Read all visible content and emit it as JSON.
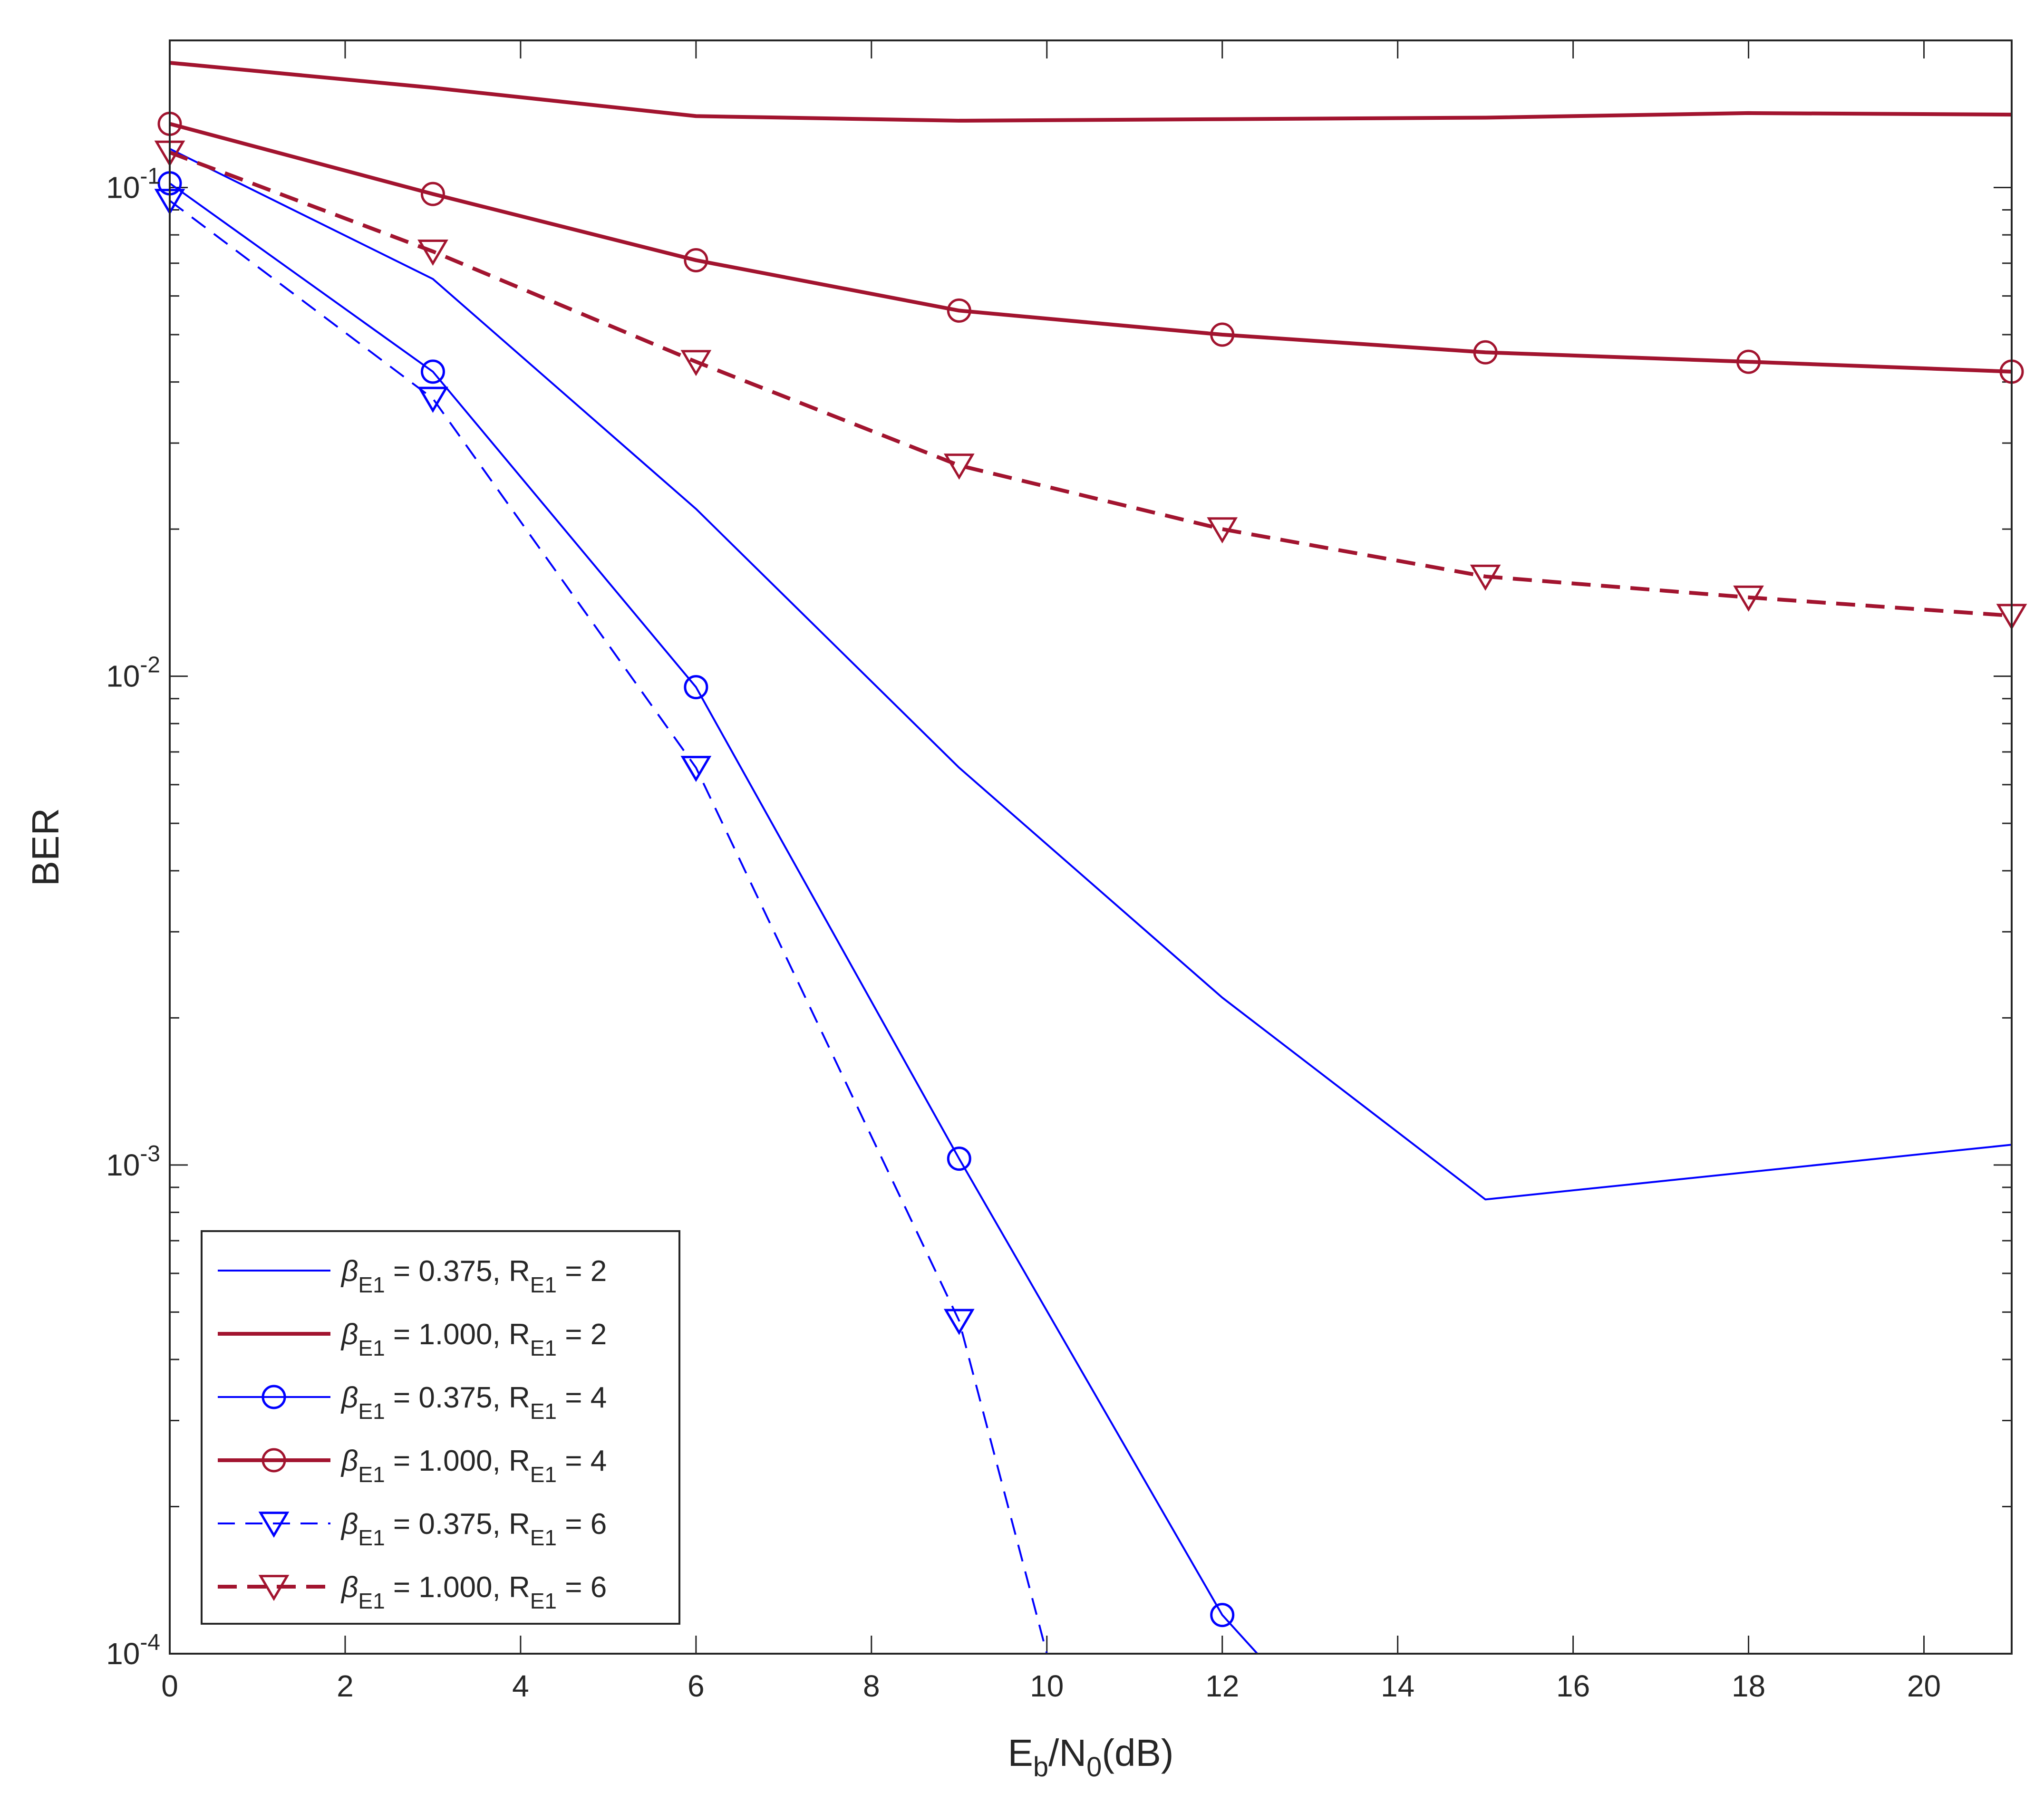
{
  "chart_data": {
    "type": "line",
    "xlabel": {
      "base": "E",
      "sub1": "b",
      "mid": "/N",
      "sub2": "0",
      "tail": "(dB)"
    },
    "ylabel": "BER",
    "yscale": "log",
    "xlim": [
      0,
      21
    ],
    "ylim": [
      0.0001,
      0.2
    ],
    "x_ticks": [
      "0",
      "2",
      "4",
      "6",
      "8",
      "10",
      "12",
      "14",
      "16",
      "18",
      "20"
    ],
    "y_ticks": [
      {
        "base": "10",
        "exp": "-4",
        "value": 0.0001
      },
      {
        "base": "10",
        "exp": "-3",
        "value": 0.001
      },
      {
        "base": "10",
        "exp": "-2",
        "value": 0.01
      },
      {
        "base": "10",
        "exp": "-1",
        "value": 0.1
      }
    ],
    "legend_position": "bottom-left",
    "colors": {
      "blue": "#0000ff",
      "red": "#a2142f",
      "axis": "#262626"
    },
    "series": [
      {
        "name": "beta_E1 = 0.375, R_E1 = 2",
        "legend": {
          "beta": "0.375",
          "r": "2"
        },
        "color": "blue",
        "dash": "solid",
        "marker": "none",
        "width": "thin",
        "x": [
          0,
          3,
          6,
          9,
          12,
          15,
          21
        ],
        "y": [
          0.12,
          0.065,
          0.022,
          0.0065,
          0.0022,
          0.00085,
          0.0011
        ]
      },
      {
        "name": "beta_E1 = 1.000, R_E1 = 2",
        "legend": {
          "beta": "1.000",
          "r": "2"
        },
        "color": "red",
        "dash": "solid",
        "marker": "none",
        "width": "thick",
        "x": [
          0,
          3,
          6,
          9,
          12,
          15,
          18,
          21
        ],
        "y": [
          0.18,
          0.16,
          0.14,
          0.137,
          0.138,
          0.139,
          0.142,
          0.141
        ]
      },
      {
        "name": "beta_E1 = 0.375, R_E1 = 4",
        "legend": {
          "beta": "0.375",
          "r": "4"
        },
        "color": "blue",
        "dash": "solid",
        "marker": "circle",
        "width": "thin",
        "x": [
          0,
          3,
          6,
          9,
          12,
          12.4
        ],
        "y": [
          0.102,
          0.042,
          0.0095,
          0.00103,
          0.00012,
          0.0001
        ]
      },
      {
        "name": "beta_E1 = 1.000, R_E1 = 4",
        "legend": {
          "beta": "1.000",
          "r": "4"
        },
        "color": "red",
        "dash": "solid",
        "marker": "circle",
        "width": "thick",
        "x": [
          0,
          3,
          6,
          9,
          12,
          15,
          18,
          21
        ],
        "y": [
          0.135,
          0.097,
          0.071,
          0.056,
          0.05,
          0.046,
          0.044,
          0.042
        ]
      },
      {
        "name": "beta_E1 = 0.375, R_E1 = 6",
        "legend": {
          "beta": "0.375",
          "r": "6"
        },
        "color": "blue",
        "dash": "dashed",
        "marker": "triangle-down",
        "width": "thin",
        "x": [
          0,
          3,
          6,
          9,
          10
        ],
        "y": [
          0.094,
          0.037,
          0.0065,
          0.00048,
          0.0001
        ]
      },
      {
        "name": "beta_E1 = 1.000, R_E1 = 6",
        "legend": {
          "beta": "1.000",
          "r": "6"
        },
        "color": "red",
        "dash": "dashed",
        "marker": "triangle-down",
        "width": "thick",
        "x": [
          0,
          3,
          6,
          9,
          12,
          15,
          18,
          21
        ],
        "y": [
          0.118,
          0.074,
          0.044,
          0.027,
          0.02,
          0.016,
          0.0145,
          0.0133
        ]
      }
    ]
  }
}
